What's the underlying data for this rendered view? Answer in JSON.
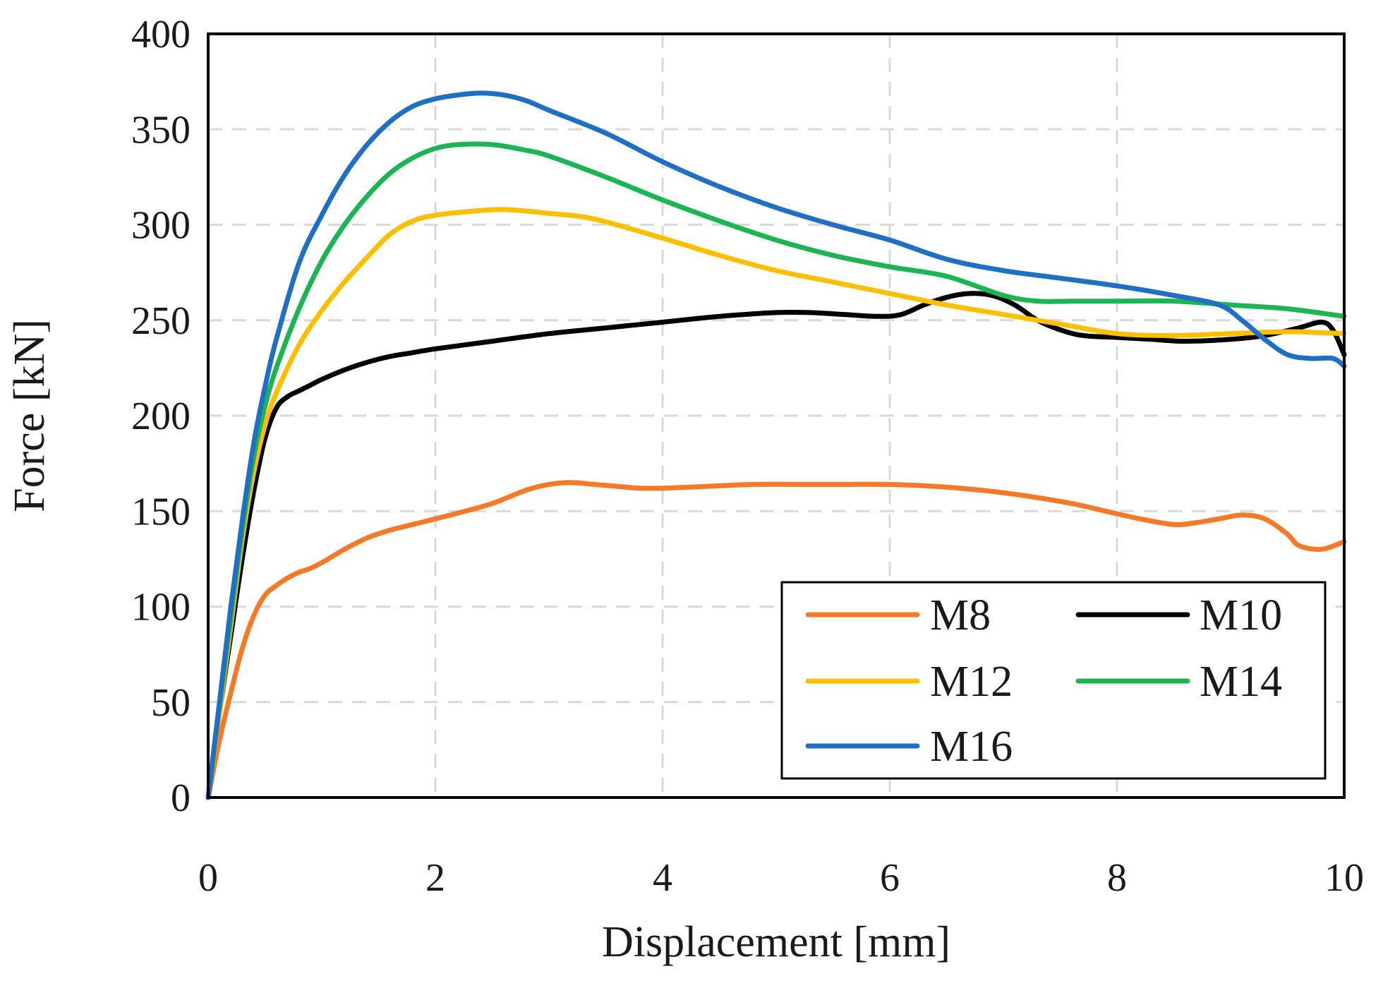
{
  "chart_data": {
    "type": "line",
    "title": "",
    "xlabel": "Displacement [mm]",
    "ylabel": "Force [kN]",
    "xlim": [
      0,
      10
    ],
    "ylim": [
      0,
      400
    ],
    "xticks": [
      "0",
      "2",
      "4",
      "6",
      "8",
      "10"
    ],
    "yticks": [
      "0",
      "50",
      "100",
      "150",
      "200",
      "250",
      "300",
      "350",
      "400"
    ],
    "xtick_values": [
      0,
      2,
      4,
      6,
      8,
      10
    ],
    "ytick_values": [
      0,
      50,
      100,
      150,
      200,
      250,
      300,
      350,
      400
    ],
    "grid": true,
    "legend_position": "bottom-right",
    "series": [
      {
        "name": "M8",
        "color": "#f47a2a",
        "x": [
          0,
          0.1,
          0.2,
          0.3,
          0.4,
          0.5,
          0.6,
          0.7,
          0.8,
          0.9,
          1.0,
          1.2,
          1.4,
          1.6,
          1.8,
          2.0,
          2.2,
          2.5,
          2.8,
          3.0,
          3.2,
          3.4,
          3.6,
          3.8,
          4.0,
          4.4,
          4.8,
          5.2,
          5.6,
          6.0,
          6.4,
          6.8,
          7.2,
          7.6,
          7.9,
          8.2,
          8.5,
          8.7,
          8.9,
          9.1,
          9.3,
          9.5,
          9.6,
          9.8,
          10.0
        ],
        "y": [
          0,
          30,
          55,
          78,
          95,
          106,
          111,
          115,
          118,
          120,
          123,
          130,
          136,
          140,
          143,
          146,
          149,
          154,
          161,
          164,
          165,
          164,
          163,
          162,
          162,
          163,
          164,
          164,
          164,
          164,
          163,
          161,
          158,
          154,
          150,
          146,
          143,
          144,
          146,
          148,
          146,
          138,
          132,
          130,
          134
        ]
      },
      {
        "name": "M10",
        "color": "#000000",
        "x": [
          0,
          0.1,
          0.2,
          0.3,
          0.4,
          0.5,
          0.6,
          0.7,
          0.8,
          0.9,
          1.0,
          1.2,
          1.4,
          1.6,
          1.8,
          2.0,
          2.5,
          3.0,
          3.5,
          4.0,
          4.5,
          5.0,
          5.3,
          5.6,
          5.9,
          6.1,
          6.3,
          6.5,
          6.7,
          6.9,
          7.1,
          7.3,
          7.5,
          7.7,
          8.0,
          8.3,
          8.6,
          9.0,
          9.3,
          9.6,
          9.8,
          9.9,
          10.0
        ],
        "y": [
          0,
          45,
          85,
          125,
          160,
          188,
          204,
          210,
          213,
          216,
          219,
          224,
          228,
          231,
          233,
          235,
          239,
          243,
          246,
          249,
          252,
          254,
          254,
          253,
          252,
          253,
          258,
          262,
          264,
          263,
          258,
          250,
          245,
          242,
          241,
          240,
          239,
          240,
          242,
          246,
          249,
          245,
          232
        ]
      },
      {
        "name": "M12",
        "color": "#ffbf00",
        "x": [
          0,
          0.1,
          0.2,
          0.3,
          0.4,
          0.5,
          0.6,
          0.8,
          1.0,
          1.2,
          1.4,
          1.6,
          1.8,
          2.0,
          2.3,
          2.6,
          3.0,
          3.4,
          4.0,
          4.5,
          5.0,
          5.5,
          6.0,
          6.5,
          7.0,
          7.5,
          8.0,
          8.5,
          9.0,
          9.5,
          10.0
        ],
        "y": [
          0,
          45,
          90,
          135,
          170,
          195,
          212,
          237,
          255,
          270,
          283,
          295,
          302,
          305,
          307,
          308,
          306,
          303,
          293,
          284,
          276,
          270,
          264,
          258,
          253,
          248,
          243,
          242,
          243,
          244,
          243
        ]
      },
      {
        "name": "M14",
        "color": "#1db554",
        "x": [
          0,
          0.1,
          0.2,
          0.3,
          0.4,
          0.5,
          0.6,
          0.8,
          1.0,
          1.2,
          1.4,
          1.6,
          1.8,
          2.0,
          2.2,
          2.5,
          2.8,
          3.0,
          3.5,
          4.0,
          4.5,
          5.0,
          5.5,
          6.0,
          6.5,
          7.0,
          7.3,
          7.6,
          8.0,
          8.5,
          9.0,
          9.5,
          10.0
        ],
        "y": [
          0,
          48,
          95,
          140,
          178,
          205,
          225,
          256,
          281,
          300,
          315,
          327,
          335,
          340,
          342,
          342,
          339,
          336,
          325,
          313,
          302,
          292,
          284,
          278,
          273,
          263,
          260,
          260,
          260,
          260,
          258,
          256,
          252
        ]
      },
      {
        "name": "M16",
        "color": "#1f6fc4",
        "x": [
          0,
          0.1,
          0.2,
          0.3,
          0.4,
          0.5,
          0.6,
          0.8,
          1.0,
          1.2,
          1.4,
          1.6,
          1.8,
          2.0,
          2.2,
          2.4,
          2.6,
          2.8,
          3.0,
          3.5,
          4.0,
          4.5,
          5.0,
          5.5,
          6.0,
          6.5,
          7.0,
          7.5,
          8.0,
          8.5,
          8.9,
          9.1,
          9.3,
          9.5,
          9.7,
          9.9,
          10.0
        ],
        "y": [
          0,
          50,
          100,
          145,
          185,
          215,
          240,
          280,
          305,
          326,
          342,
          354,
          362,
          366,
          368,
          369,
          368,
          365,
          360,
          348,
          333,
          320,
          309,
          300,
          292,
          282,
          276,
          272,
          268,
          263,
          258,
          250,
          240,
          232,
          230,
          230,
          226
        ]
      }
    ]
  },
  "legend": {
    "entries": [
      "M8",
      "M10",
      "M12",
      "M14",
      "M16"
    ]
  }
}
